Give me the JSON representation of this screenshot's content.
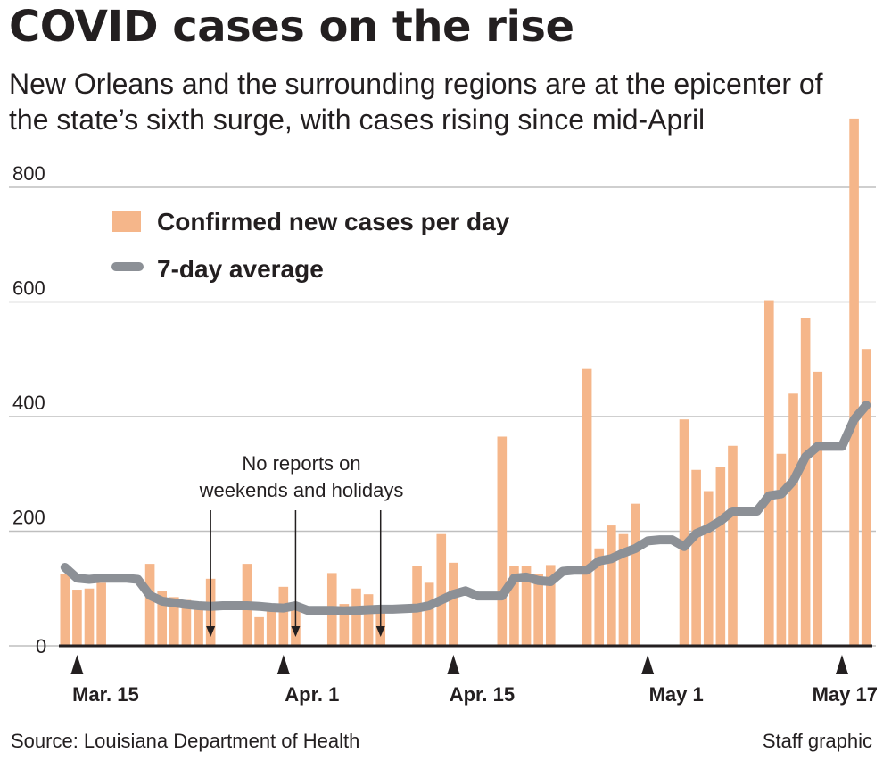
{
  "title": "COVID cases on the rise",
  "subtitle": "New Orleans and the surrounding regions are at the epicenter of the state’s sixth surge, with cases rising since mid-April",
  "source": "Source: Louisiana Department of Health",
  "credit": "Staff graphic",
  "annotation": [
    "No reports on",
    "weekends and holidays"
  ],
  "colors": {
    "bar": "#f5b68a",
    "line": "#8c9096",
    "grid": "#bfbfbf",
    "text": "#231f20"
  },
  "chart_data": {
    "type": "bar",
    "x_type": "date",
    "start_date": "Mar. 14",
    "series": [
      {
        "name": "Confirmed new cases per day",
        "type": "bar",
        "values": [
          125,
          98,
          100,
          110,
          0,
          0,
          0,
          143,
          95,
          85,
          80,
          75,
          117,
          0,
          0,
          143,
          50,
          62,
          103,
          65,
          0,
          0,
          127,
          73,
          100,
          90,
          60,
          0,
          0,
          140,
          110,
          195,
          145,
          0,
          0,
          0,
          365,
          140,
          140,
          125,
          141,
          0,
          0,
          483,
          170,
          210,
          195,
          248,
          0,
          0,
          0,
          395,
          307,
          270,
          312,
          349,
          0,
          0,
          603,
          335,
          440,
          572,
          478,
          0,
          0,
          920,
          518
        ]
      },
      {
        "name": "7-day average",
        "type": "line",
        "values": [
          137,
          118,
          116,
          118,
          118,
          118,
          116,
          88,
          78,
          75,
          72,
          70,
          69,
          70,
          70,
          70,
          69,
          67,
          66,
          70,
          62,
          62,
          62,
          61,
          62,
          63,
          64,
          64,
          65,
          66,
          70,
          80,
          90,
          96,
          87,
          87,
          87,
          118,
          120,
          114,
          112,
          130,
          132,
          132,
          148,
          152,
          162,
          170,
          183,
          185,
          185,
          173,
          196,
          205,
          218,
          235,
          235,
          235,
          262,
          265,
          288,
          330,
          348,
          348,
          348,
          395,
          420
        ]
      }
    ],
    "ylim": [
      0,
      900
    ],
    "yticks": [
      0,
      200,
      400,
      600,
      800
    ],
    "xticks": [
      {
        "label": "Mar. 15",
        "index": 1
      },
      {
        "label": "Apr. 1",
        "index": 18
      },
      {
        "label": "Apr. 15",
        "index": 32
      },
      {
        "label": "May 1",
        "index": 48
      },
      {
        "label": "May 17",
        "index": 64
      }
    ],
    "no_report_markers": [
      12,
      19,
      26
    ],
    "legend": {
      "position": "top-left"
    },
    "grid": true
  }
}
